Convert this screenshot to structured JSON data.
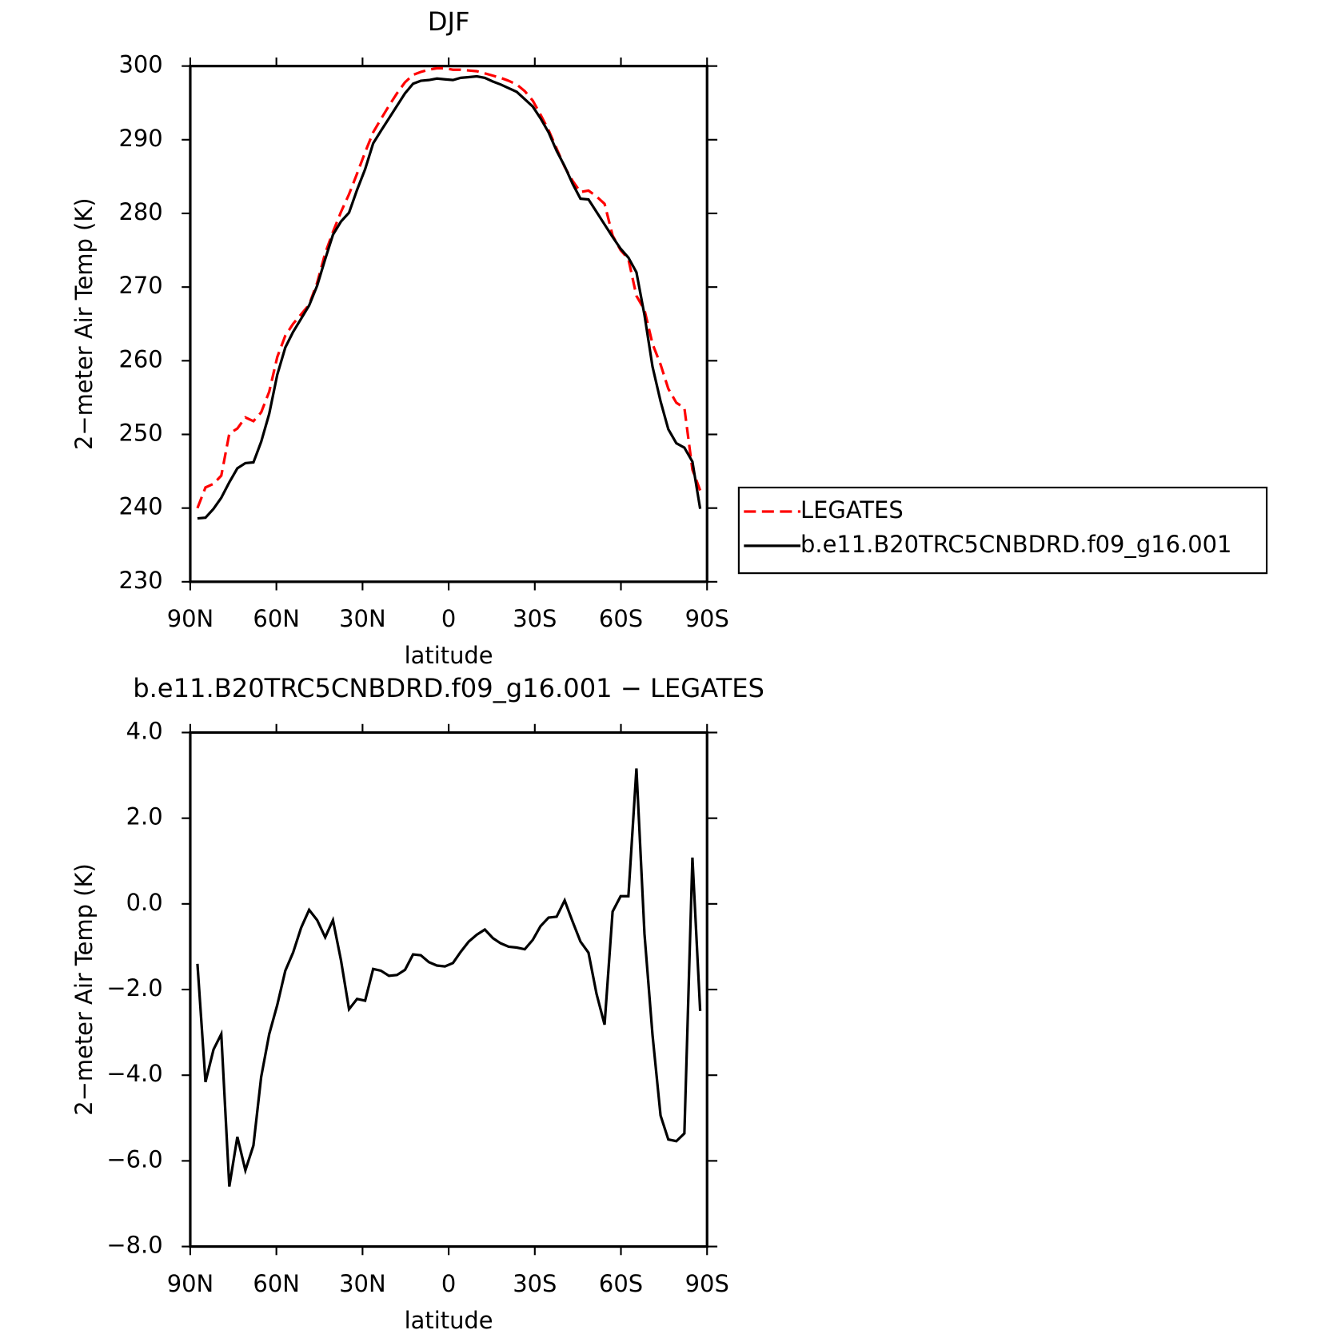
{
  "chart_data": [
    {
      "type": "line",
      "title": "DJF",
      "xlabel": "latitude",
      "ylabel": "2−meter Air Temp (K)",
      "x": [
        87.5,
        84.7,
        81.9,
        79.2,
        76.4,
        73.6,
        70.8,
        68.0,
        65.3,
        62.5,
        59.7,
        56.9,
        54.2,
        51.4,
        48.6,
        45.8,
        43.0,
        40.3,
        37.5,
        34.7,
        31.9,
        29.1,
        26.3,
        23.6,
        20.8,
        18.0,
        15.2,
        12.4,
        9.7,
        6.9,
        4.1,
        1.3,
        -1.5,
        -4.2,
        -7.0,
        -9.8,
        -12.6,
        -15.4,
        -18.1,
        -20.9,
        -23.7,
        -26.5,
        -29.3,
        -32.0,
        -34.8,
        -37.6,
        -40.4,
        -43.2,
        -45.9,
        -48.7,
        -51.5,
        -54.3,
        -57.1,
        -59.9,
        -62.6,
        -65.4,
        -68.2,
        -71.0,
        -73.8,
        -76.5,
        -79.3,
        -82.1,
        -84.9,
        -87.6
      ],
      "xlim": [
        90,
        -90
      ],
      "xticks": [
        {
          "value": 90,
          "label": "90N"
        },
        {
          "value": 60,
          "label": "60N"
        },
        {
          "value": 30,
          "label": "30N"
        },
        0,
        {
          "value": -30,
          "label": "30S"
        },
        {
          "value": -60,
          "label": "60S"
        },
        {
          "value": -90,
          "label": "90S"
        }
      ],
      "ylim": [
        230,
        300
      ],
      "yticks": [
        230,
        240,
        250,
        260,
        270,
        280,
        290,
        300
      ],
      "legend": "right",
      "series": [
        {
          "name": "LEGATES",
          "color": "#ff0000",
          "dash": "dashed",
          "values": [
            240.0,
            242.8,
            243.3,
            244.4,
            250.1,
            250.8,
            252.3,
            251.8,
            253.0,
            255.8,
            260.5,
            263.4,
            265.0,
            266.3,
            267.6,
            270.6,
            274.6,
            277.5,
            280.2,
            282.6,
            285.4,
            288.3,
            291.0,
            292.8,
            294.6,
            296.3,
            297.8,
            298.8,
            299.2,
            299.5,
            299.7,
            299.7,
            299.5,
            299.5,
            299.4,
            299.3,
            299.0,
            298.7,
            298.4,
            298.0,
            297.5,
            296.6,
            295.3,
            293.4,
            291.3,
            288.8,
            286.3,
            284.4,
            282.9,
            283.1,
            282.3,
            281.3,
            277.0,
            275.0,
            273.8,
            268.8,
            266.9,
            262.3,
            259.5,
            256.2,
            254.3,
            253.6,
            245.2,
            242.4
          ]
        },
        {
          "name": "b.e11.B20TRC5CNBDRD.f09_g16.001",
          "color": "#000000",
          "dash": "solid",
          "values": [
            238.6,
            238.7,
            239.9,
            241.4,
            243.5,
            245.4,
            246.1,
            246.2,
            249.0,
            252.8,
            258.1,
            261.8,
            263.9,
            265.7,
            267.5,
            270.2,
            273.8,
            277.1,
            278.9,
            280.1,
            283.2,
            286.0,
            289.5,
            291.2,
            292.9,
            294.6,
            296.3,
            297.6,
            298.0,
            298.1,
            298.3,
            298.2,
            298.1,
            298.4,
            298.5,
            298.6,
            298.4,
            297.9,
            297.5,
            297.0,
            296.5,
            295.5,
            294.5,
            292.9,
            291.0,
            288.5,
            286.4,
            284.0,
            282.0,
            281.9,
            280.2,
            278.5,
            276.8,
            275.2,
            274.0,
            272.0,
            266.2,
            259.2,
            254.5,
            250.7,
            248.8,
            248.2,
            246.3,
            239.9
          ]
        }
      ]
    },
    {
      "type": "line",
      "title": "b.e11.B20TRC5CNBDRD.f09_g16.001 − LEGATES",
      "xlabel": "latitude",
      "ylabel": "2−meter Air Temp (K)",
      "x": [
        87.5,
        84.7,
        81.9,
        79.2,
        76.4,
        73.6,
        70.8,
        68.0,
        65.3,
        62.5,
        59.7,
        56.9,
        54.2,
        51.4,
        48.6,
        45.8,
        43.0,
        40.3,
        37.5,
        34.7,
        31.9,
        29.1,
        26.3,
        23.6,
        20.8,
        18.0,
        15.2,
        12.4,
        9.7,
        6.9,
        4.1,
        1.3,
        -1.5,
        -4.2,
        -7.0,
        -9.8,
        -12.6,
        -15.4,
        -18.1,
        -20.9,
        -23.7,
        -26.5,
        -29.3,
        -32.0,
        -34.8,
        -37.6,
        -40.4,
        -43.2,
        -45.9,
        -48.7,
        -51.5,
        -54.3,
        -57.1,
        -59.9,
        -62.6,
        -65.4,
        -68.2,
        -71.0,
        -73.8,
        -76.5,
        -79.3,
        -82.1,
        -84.9,
        -87.6
      ],
      "xlim": [
        90,
        -90
      ],
      "xticks": [
        {
          "value": 90,
          "label": "90N"
        },
        {
          "value": 60,
          "label": "60N"
        },
        {
          "value": 30,
          "label": "30N"
        },
        0,
        {
          "value": -30,
          "label": "30S"
        },
        {
          "value": -60,
          "label": "60S"
        },
        {
          "value": -90,
          "label": "90S"
        }
      ],
      "ylim": [
        -8,
        4
      ],
      "yticks": [
        {
          "value": -8,
          "label": "−8.0"
        },
        {
          "value": -6,
          "label": "−6.0"
        },
        {
          "value": -4,
          "label": "−4.0"
        },
        {
          "value": -2,
          "label": "−2.0"
        },
        {
          "value": 0,
          "label": "0.0"
        },
        {
          "value": 2,
          "label": "2.0"
        },
        {
          "value": 4,
          "label": "4.0"
        }
      ],
      "series": [
        {
          "color": "#000000",
          "dash": "solid",
          "values": [
            -1.4,
            -4.16,
            -3.4,
            -3.04,
            -6.6,
            -5.44,
            -6.22,
            -5.64,
            -4.04,
            -3.04,
            -2.36,
            -1.56,
            -1.14,
            -0.56,
            -0.14,
            -0.38,
            -0.78,
            -0.38,
            -1.32,
            -2.46,
            -2.22,
            -2.26,
            -1.52,
            -1.56,
            -1.68,
            -1.66,
            -1.54,
            -1.18,
            -1.2,
            -1.36,
            -1.44,
            -1.46,
            -1.38,
            -1.12,
            -0.88,
            -0.72,
            -0.6,
            -0.8,
            -0.92,
            -1.0,
            -1.02,
            -1.06,
            -0.84,
            -0.52,
            -0.32,
            -0.3,
            0.08,
            -0.42,
            -0.88,
            -1.14,
            -2.1,
            -2.82,
            -0.18,
            0.18,
            0.18,
            3.16,
            -0.7,
            -3.06,
            -4.94,
            -5.5,
            -5.54,
            -5.36,
            1.08,
            -2.5
          ]
        }
      ]
    }
  ]
}
